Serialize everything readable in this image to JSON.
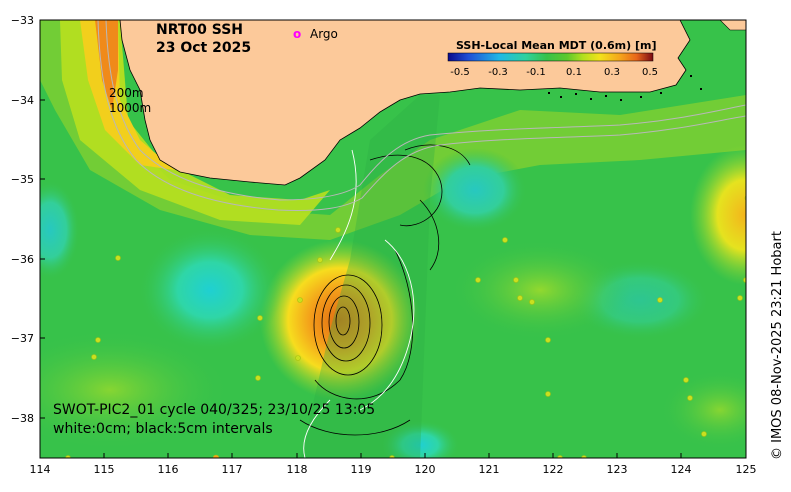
{
  "title": {
    "line1": "NRT00 SSH",
    "line2": "23 Oct 2025"
  },
  "argo_legend": {
    "marker": "o",
    "label": "Argo",
    "color": "#ff00ff"
  },
  "depth_labels": [
    "200m",
    "1000m"
  ],
  "colorbar": {
    "title": "SSH-Local Mean MDT (0.6m) [m]",
    "tick_labels": [
      "-0.5",
      "-0.3",
      "-0.1",
      "0.1",
      "0.3",
      "0.5"
    ],
    "colors": [
      "#0a0a8c",
      "#1f4fd6",
      "#1fb8e6",
      "#2ed19e",
      "#37c24a",
      "#5cc82c",
      "#b4e01e",
      "#f2e21b",
      "#f5a41b",
      "#e8661a",
      "#c0281e",
      "#7a0a14"
    ]
  },
  "annotation": {
    "line1": "SWOT-PIC2_01 cycle 040/325; 23/10/25 13:05",
    "line2": "white:0cm; black:5cm intervals"
  },
  "credit": "© IMOS 08-Nov-2025 23:21 Hobart",
  "axes": {
    "x_ticks": [
      "114",
      "115",
      "116",
      "117",
      "118",
      "119",
      "120",
      "121",
      "122",
      "123",
      "124",
      "125"
    ],
    "y_ticks": [
      "−33",
      "−34",
      "−35",
      "−36",
      "−37",
      "−38"
    ],
    "lon_range": [
      114,
      125
    ],
    "lat_range": [
      -38.5,
      -33
    ]
  },
  "colors": {
    "land": "#fcc99a",
    "ocean_base": "#37c24a",
    "coastline": "#000000"
  }
}
